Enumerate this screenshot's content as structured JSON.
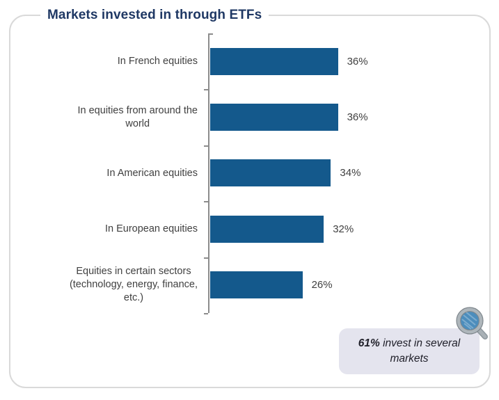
{
  "title": "Markets invested in through ETFs",
  "chart_data": {
    "type": "bar",
    "orientation": "horizontal",
    "title": "Markets invested in through ETFs",
    "categories": [
      "In French equities",
      "In equities from around the\nworld",
      "In American equities",
      "In European equities",
      "Equities in certain sectors\n(technology, energy, finance,\netc.)"
    ],
    "values": [
      36,
      36,
      34,
      32,
      26
    ],
    "value_labels": [
      "36%",
      "36%",
      "34%",
      "32%",
      "26%"
    ],
    "unit": "%",
    "xlim": [
      0,
      40
    ],
    "gridlines": false,
    "legend": false,
    "bar_color": "#14598C",
    "axis_color": "#8C8C8C",
    "label_color": "#404040"
  },
  "note": {
    "highlight": "61%",
    "text": " invest in several markets"
  },
  "icons": {
    "magnifier": "magnifying-glass-icon"
  },
  "colors": {
    "background": "#FFFFFF",
    "frame_border": "#D9D9D9",
    "title": "#1F3864",
    "note_background": "#E4E4EE",
    "note_text": "#1E1E28",
    "magnifier_lens": "#4C8DBC",
    "magnifier_ring": "#AEB6BB"
  }
}
